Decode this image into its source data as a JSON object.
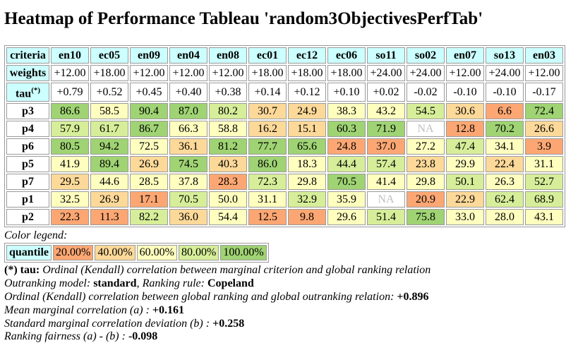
{
  "title": "Heatmap of Performance Tableau 'random3ObjectivesPerfTab'",
  "chart_data": {
    "type": "heatmap",
    "row_header_labels": {
      "criteria": "criteria",
      "weights": "weights",
      "tau": "tau",
      "tau_marker": "(*)"
    },
    "criteria": [
      "en10",
      "ec05",
      "en09",
      "en04",
      "en08",
      "ec01",
      "ec12",
      "ec06",
      "so11",
      "so02",
      "en07",
      "so13",
      "en03"
    ],
    "weights": [
      "+12.00",
      "+18.00",
      "+12.00",
      "+12.00",
      "+12.00",
      "+18.00",
      "+18.00",
      "+18.00",
      "+24.00",
      "+24.00",
      "+12.00",
      "+24.00",
      "+12.00"
    ],
    "tau": [
      "+0.79",
      "+0.52",
      "+0.45",
      "+0.40",
      "+0.38",
      "+0.14",
      "+0.12",
      "+0.10",
      "+0.02",
      "-0.02",
      "-0.10",
      "-0.10",
      "-0.17"
    ],
    "rows": [
      {
        "action": "p3",
        "values": [
          "86.6",
          "58.5",
          "90.4",
          "87.0",
          "80.2",
          "30.7",
          "24.9",
          "38.3",
          "43.2",
          "54.5",
          "30.6",
          "6.6",
          "72.4"
        ],
        "quantiles": [
          5,
          3,
          5,
          5,
          4,
          2,
          2,
          3,
          3,
          4,
          2,
          1,
          5
        ]
      },
      {
        "action": "p4",
        "values": [
          "57.9",
          "61.7",
          "86.7",
          "66.3",
          "58.8",
          "16.2",
          "15.1",
          "60.3",
          "71.9",
          "NA",
          "12.8",
          "70.2",
          "26.6"
        ],
        "quantiles": [
          4,
          4,
          5,
          3,
          3,
          2,
          2,
          5,
          5,
          0,
          1,
          5,
          2
        ]
      },
      {
        "action": "p6",
        "values": [
          "80.5",
          "94.2",
          "72.5",
          "36.1",
          "81.2",
          "77.7",
          "65.6",
          "24.8",
          "37.0",
          "27.2",
          "47.4",
          "34.1",
          "3.9"
        ],
        "quantiles": [
          5,
          5,
          3,
          2,
          5,
          5,
          5,
          1,
          1,
          3,
          4,
          3,
          1
        ]
      },
      {
        "action": "p5",
        "values": [
          "41.9",
          "89.4",
          "26.9",
          "74.5",
          "40.3",
          "86.0",
          "18.3",
          "44.4",
          "57.4",
          "23.8",
          "29.9",
          "22.4",
          "31.1"
        ],
        "quantiles": [
          3,
          5,
          2,
          5,
          2,
          5,
          3,
          4,
          4,
          2,
          3,
          2,
          3
        ]
      },
      {
        "action": "p7",
        "values": [
          "29.5",
          "44.6",
          "28.5",
          "37.8",
          "28.3",
          "72.3",
          "29.8",
          "70.5",
          "41.4",
          "29.8",
          "50.1",
          "26.3",
          "52.7"
        ],
        "quantiles": [
          2,
          3,
          3,
          3,
          1,
          4,
          3,
          5,
          3,
          3,
          4,
          3,
          4
        ]
      },
      {
        "action": "p1",
        "values": [
          "32.5",
          "26.9",
          "17.1",
          "70.5",
          "50.0",
          "31.1",
          "32.9",
          "35.9",
          "NA",
          "20.9",
          "22.9",
          "62.4",
          "68.9"
        ],
        "quantiles": [
          3,
          2,
          1,
          4,
          3,
          3,
          4,
          3,
          0,
          1,
          2,
          4,
          4
        ]
      },
      {
        "action": "p2",
        "values": [
          "22.3",
          "11.3",
          "82.2",
          "36.0",
          "54.4",
          "12.5",
          "9.8",
          "29.6",
          "51.4",
          "75.8",
          "33.0",
          "28.0",
          "43.1"
        ],
        "quantiles": [
          1,
          1,
          4,
          2,
          3,
          1,
          1,
          3,
          4,
          5,
          3,
          3,
          3
        ]
      }
    ],
    "na_label": "NA"
  },
  "colors": {
    "q1": "#fca773",
    "q2": "#fdd999",
    "q3": "#fefebf",
    "q4": "#d6ee99",
    "q5": "#9fd373",
    "na": "#ffffff",
    "header_bg": "#ccffff"
  },
  "legend": {
    "title": "Color legend:",
    "header": "quantile",
    "items": [
      "20.00%",
      "40.00%",
      "60.00%",
      "80.00%",
      "100.00%"
    ]
  },
  "notes": {
    "tau_marker": "(*) tau:",
    "tau_text": "Ordinal (Kendall) correlation between marginal criterion and global ranking relation",
    "model_label": "Outranking model:",
    "model_value": "standard",
    "rule_label": "Ranking rule:",
    "rule_value": "Copeland",
    "ordinal_label": "Ordinal (Kendall) correlation between global ranking and global outranking relation:",
    "ordinal_value": "+0.896",
    "mean_label": "Mean marginal correlation (a) :",
    "mean_value": "+0.161",
    "std_label": "Standard marginal correlation deviation (b) :",
    "std_value": "+0.258",
    "fair_label": "Ranking fairness (a) - (b) :",
    "fair_value": "-0.098"
  }
}
